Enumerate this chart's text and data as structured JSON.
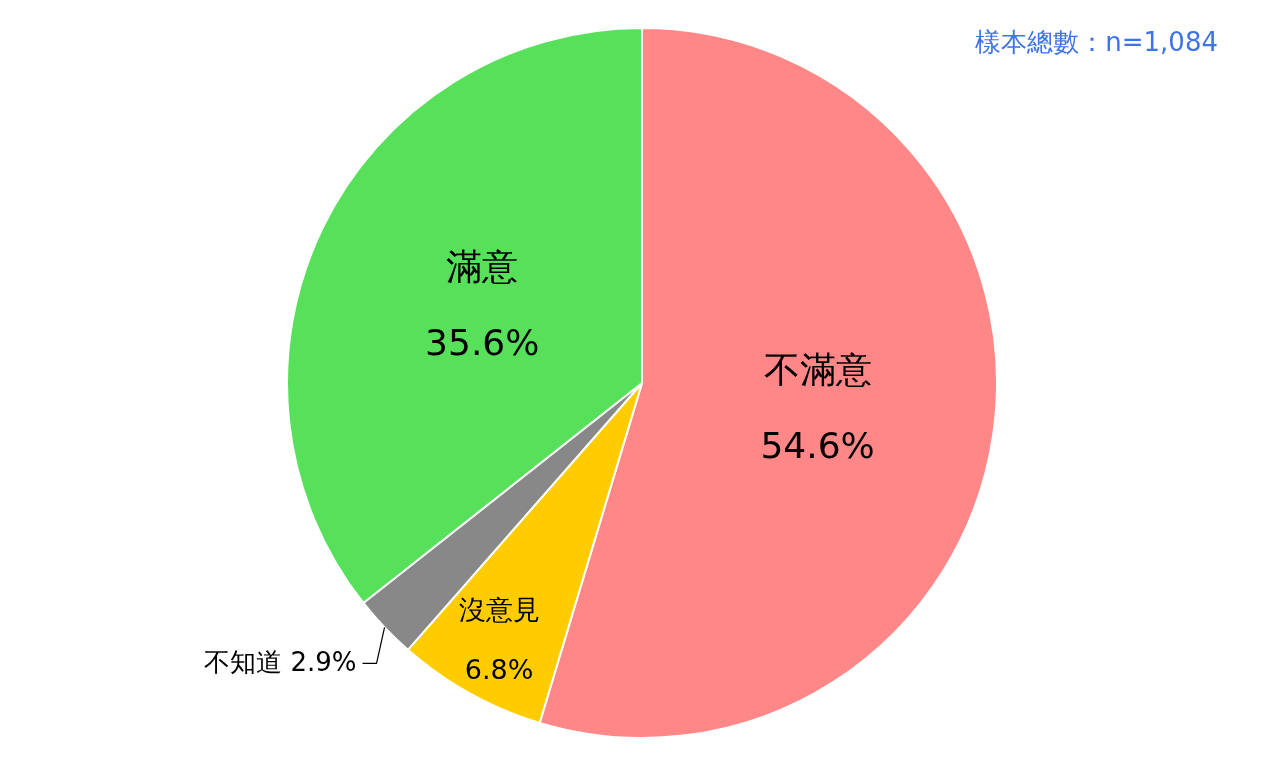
{
  "chart_data": {
    "type": "pie",
    "categories": [
      "不滿意",
      "沒意見",
      "不知道",
      "滿意"
    ],
    "values": [
      54.6,
      6.8,
      2.9,
      35.6
    ],
    "colors": [
      "#ff8787",
      "#ffcc00",
      "#888888",
      "#57e05a"
    ],
    "value_labels": [
      "54.6%",
      "6.8%",
      "2.9%",
      "35.6%"
    ],
    "annotations": [
      "樣本總數：n=1,084"
    ]
  }
}
